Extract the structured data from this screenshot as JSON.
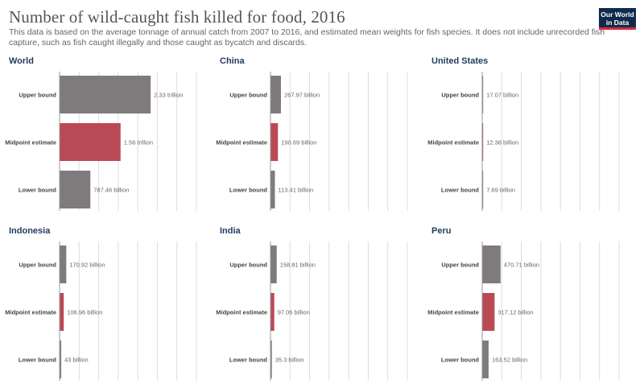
{
  "header": {
    "title": "Number of wild-caught fish killed for food, 2016",
    "subtitle": "This data is based on the average tonnage of annual catch from 2007 to 2016, and estimated mean weights for fish species. It does not include unrecorded fish capture, such as fish caught illegally and those caught as bycatch and discards.",
    "logo_line1": "Our World",
    "logo_line2": "in Data"
  },
  "colors": {
    "bound_bar": "#7f7b7c",
    "midpoint_bar": "#b94a55"
  },
  "chart_data": [
    {
      "type": "bar",
      "orientation": "horizontal",
      "title": "World",
      "categories": [
        "Upper bound",
        "Midpoint estimate",
        "Lower bound"
      ],
      "values": [
        2330000000000,
        1560000000000,
        787460000000
      ],
      "value_labels": [
        "2.33 trillion",
        "1.56 trillion",
        "787.46 billion"
      ],
      "xlim": [
        0,
        3500000000000
      ]
    },
    {
      "type": "bar",
      "orientation": "horizontal",
      "title": "China",
      "categories": [
        "Upper bound",
        "Midpoint estimate",
        "Lower bound"
      ],
      "values": [
        267970000000,
        190690000000,
        113410000000
      ],
      "value_labels": [
        "267.97 billion",
        "190.69 billion",
        "113.41 billion"
      ],
      "xlim": [
        0,
        3500000000000
      ]
    },
    {
      "type": "bar",
      "orientation": "horizontal",
      "title": "United States",
      "categories": [
        "Upper bound",
        "Midpoint estimate",
        "Lower bound"
      ],
      "values": [
        17070000000,
        12380000000,
        7690000000
      ],
      "value_labels": [
        "17.07 billion",
        "12.38 billion",
        "7.69 billion"
      ],
      "xlim": [
        0,
        3500000000000
      ]
    },
    {
      "type": "bar",
      "orientation": "horizontal",
      "title": "Indonesia",
      "categories": [
        "Upper bound",
        "Midpoint estimate",
        "Lower bound"
      ],
      "values": [
        170920000000,
        106960000000,
        43000000000
      ],
      "value_labels": [
        "170.92 billion",
        "106.96 billion",
        "43 billion"
      ],
      "xlim": [
        0,
        3500000000000
      ]
    },
    {
      "type": "bar",
      "orientation": "horizontal",
      "title": "India",
      "categories": [
        "Upper bound",
        "Midpoint estimate",
        "Lower bound"
      ],
      "values": [
        158810000000,
        97060000000,
        35300000000
      ],
      "value_labels": [
        "158.81 billion",
        "97.06 billion",
        "35.3 billion"
      ],
      "xlim": [
        0,
        3500000000000
      ]
    },
    {
      "type": "bar",
      "orientation": "horizontal",
      "title": "Peru",
      "categories": [
        "Upper bound",
        "Midpoint estimate",
        "Lower bound"
      ],
      "values": [
        470710000000,
        317120000000,
        163520000000
      ],
      "value_labels": [
        "470.71 billion",
        "317.12 billion",
        "163.52 billion"
      ],
      "xlim": [
        0,
        3500000000000
      ]
    }
  ]
}
